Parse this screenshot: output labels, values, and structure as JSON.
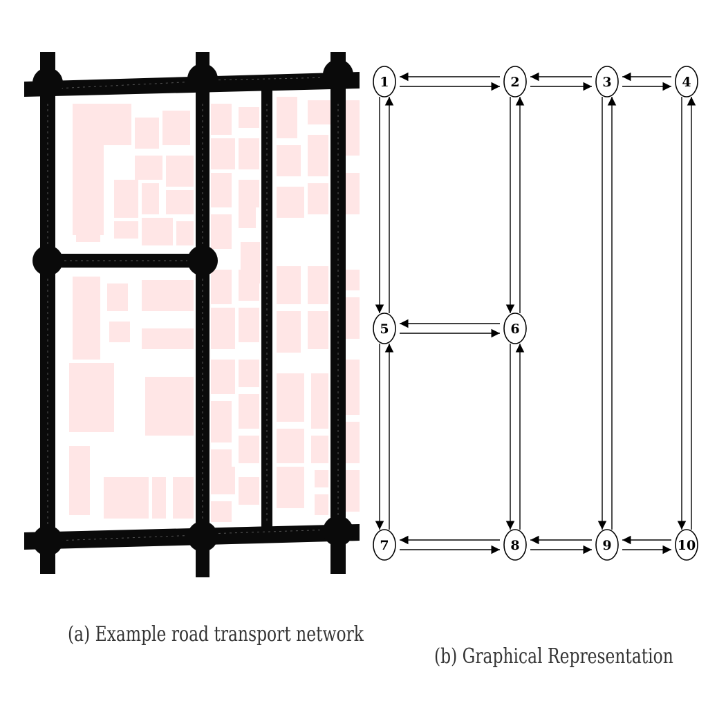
{
  "panel_a": {
    "caption": "(a) Example road transport network",
    "road_color": "#0a0a0a",
    "block_color": "#ffe6e6",
    "background_color": "#ffffff"
  },
  "panel_b": {
    "caption": "(b) Graphical Representation",
    "nodes": [
      {
        "id": "1",
        "label": "1"
      },
      {
        "id": "2",
        "label": "2"
      },
      {
        "id": "3",
        "label": "3"
      },
      {
        "id": "4",
        "label": "4"
      },
      {
        "id": "5",
        "label": "5"
      },
      {
        "id": "6",
        "label": "6"
      },
      {
        "id": "7",
        "label": "7"
      },
      {
        "id": "8",
        "label": "8"
      },
      {
        "id": "9",
        "label": "9"
      },
      {
        "id": "10",
        "label": "10"
      }
    ],
    "edges": [
      [
        "1",
        "2"
      ],
      [
        "2",
        "1"
      ],
      [
        "2",
        "3"
      ],
      [
        "3",
        "2"
      ],
      [
        "3",
        "4"
      ],
      [
        "4",
        "3"
      ],
      [
        "1",
        "5"
      ],
      [
        "5",
        "1"
      ],
      [
        "2",
        "6"
      ],
      [
        "6",
        "2"
      ],
      [
        "5",
        "6"
      ],
      [
        "6",
        "5"
      ],
      [
        "5",
        "7"
      ],
      [
        "7",
        "5"
      ],
      [
        "6",
        "8"
      ],
      [
        "8",
        "6"
      ],
      [
        "7",
        "8"
      ],
      [
        "8",
        "7"
      ],
      [
        "8",
        "9"
      ],
      [
        "9",
        "8"
      ],
      [
        "9",
        "10"
      ],
      [
        "10",
        "9"
      ],
      [
        "3",
        "9"
      ],
      [
        "9",
        "3"
      ],
      [
        "4",
        "10"
      ],
      [
        "10",
        "4"
      ]
    ]
  }
}
